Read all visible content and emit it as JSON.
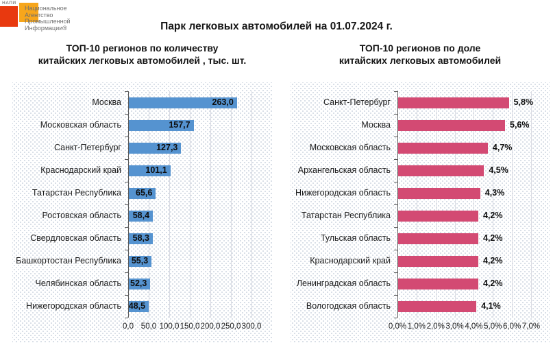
{
  "logo": {
    "acronym": "НАПИ",
    "line1": "Национальное",
    "line2": "Агентство",
    "line3": "Промышленной",
    "line4": "Информации®",
    "colors": {
      "red_square": "#e8390f",
      "orange_square": "#f7a61b"
    }
  },
  "header": {
    "title": "Парк легковых автомобилей на 01.07.2024 г."
  },
  "chart_data": [
    {
      "type": "bar",
      "orientation": "horizontal",
      "title_line1": "ТОП-10 регионов по количеству",
      "title_line2": "китайских легковых автомобилей , тыс. шт.",
      "categories": [
        "Москва",
        "Московская область",
        "Санкт-Петербург",
        "Краснодарский край",
        "Татарстан Республика",
        "Ростовская область",
        "Свердловская область",
        "Башкортостан Республика",
        "Челябинская область",
        "Нижегородская область"
      ],
      "values": [
        263.0,
        157.7,
        127.3,
        101.1,
        65.6,
        58.4,
        58.3,
        55.3,
        52.3,
        48.5
      ],
      "value_labels": [
        "263,0",
        "157,7",
        "127,3",
        "101,1",
        "65,6",
        "58,4",
        "58,3",
        "55,3",
        "52,3",
        "48,5"
      ],
      "bar_color": "#5593d0",
      "value_label_position": "inside-end",
      "xlim": [
        0,
        300
      ],
      "x_ticks": [
        {
          "value": 0,
          "label": "0,0"
        },
        {
          "value": 50,
          "label": "50,0"
        },
        {
          "value": 100,
          "label": "100,0"
        },
        {
          "value": 150,
          "label": "150,0"
        },
        {
          "value": 200,
          "label": "200,0"
        },
        {
          "value": 250,
          "label": "250,0"
        },
        {
          "value": 300,
          "label": "300,0"
        }
      ],
      "grid": true,
      "legend": "none"
    },
    {
      "type": "bar",
      "orientation": "horizontal",
      "title_line1": "ТОП-10 регионов по доле",
      "title_line2": "китайских легковых автомобилей",
      "categories": [
        "Санкт-Петербург",
        "Москва",
        "Московская область",
        "Архангельская область",
        "Нижегородская область",
        "Татарстан Республика",
        "Тульская область",
        "Краснодарский край",
        "Ленинградская область",
        "Вологодская область"
      ],
      "values": [
        5.8,
        5.6,
        4.7,
        4.5,
        4.3,
        4.2,
        4.2,
        4.2,
        4.2,
        4.1
      ],
      "value_labels": [
        "5,8%",
        "5,6%",
        "4,7%",
        "4,5%",
        "4,3%",
        "4,2%",
        "4,2%",
        "4,2%",
        "4,2%",
        "4,1%"
      ],
      "bar_color": "#d34a73",
      "value_label_position": "outside-end",
      "xlim": [
        0,
        7
      ],
      "x_ticks": [
        {
          "value": 0,
          "label": "0,0%"
        },
        {
          "value": 1,
          "label": "1,0%"
        },
        {
          "value": 2,
          "label": "2,0%"
        },
        {
          "value": 3,
          "label": "3,0%"
        },
        {
          "value": 4,
          "label": "4,0%"
        },
        {
          "value": 5,
          "label": "5,0%"
        },
        {
          "value": 6,
          "label": "6,0%"
        },
        {
          "value": 7,
          "label": "7,0%"
        }
      ],
      "grid": true,
      "legend": "none"
    }
  ]
}
